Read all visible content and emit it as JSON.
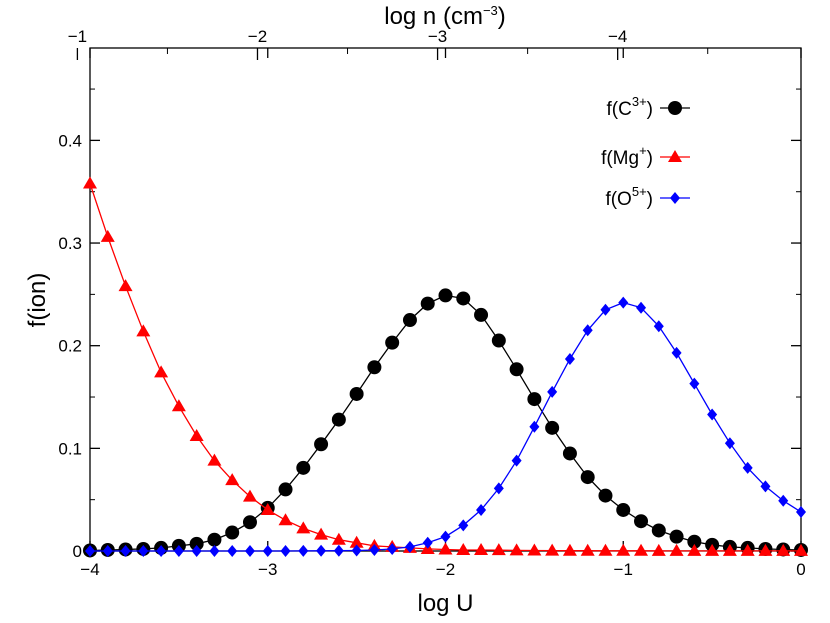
{
  "chart_data": {
    "type": "line",
    "xlabel": "log U",
    "ylabel": "f(ion)",
    "top_xlabel": {
      "base": "log n (cm",
      "exp": "−3",
      "close": ")"
    },
    "xlim": [
      -4,
      0
    ],
    "ylim": [
      0,
      0.49
    ],
    "x_ticks": [
      -4,
      -3,
      -2,
      -1,
      0
    ],
    "x_tick_labels": [
      "−4",
      "−3",
      "−2",
      "−1",
      "0"
    ],
    "y_ticks": [
      0,
      0.1,
      0.2,
      0.3,
      0.4
    ],
    "y_tick_labels": [
      "0",
      "0.1",
      "0.2",
      "0.3",
      "0.4"
    ],
    "top_ticks": [
      {
        "value": -1,
        "label": "−1"
      },
      {
        "value": -2,
        "label": "−2"
      },
      {
        "value": -3,
        "label": "−3"
      },
      {
        "value": -4,
        "label": "−4"
      }
    ],
    "top_axis_map": {
      "n_at_x_min": -1.07,
      "n_per_x": -0.987
    },
    "grid": false,
    "legend_position": "top-right",
    "x": [
      -4.0,
      -3.9,
      -3.8,
      -3.7,
      -3.6,
      -3.5,
      -3.4,
      -3.3,
      -3.2,
      -3.1,
      -3.0,
      -2.9,
      -2.8,
      -2.7,
      -2.6,
      -2.5,
      -2.4,
      -2.3,
      -2.2,
      -2.1,
      -2.0,
      -1.9,
      -1.8,
      -1.7,
      -1.6,
      -1.5,
      -1.4,
      -1.3,
      -1.2,
      -1.1,
      -1.0,
      -0.9,
      -0.8,
      -0.7,
      -0.6,
      -0.5,
      -0.4,
      -0.3,
      -0.2,
      -0.1,
      0.0
    ],
    "series": [
      {
        "name": {
          "base": "f(C",
          "sup": "3+",
          "close": ")"
        },
        "color": "#000000",
        "marker": "circle",
        "values": [
          0.0005,
          0.001,
          0.0015,
          0.002,
          0.003,
          0.005,
          0.007,
          0.011,
          0.018,
          0.028,
          0.042,
          0.06,
          0.081,
          0.104,
          0.128,
          0.153,
          0.179,
          0.203,
          0.225,
          0.241,
          0.249,
          0.246,
          0.23,
          0.205,
          0.177,
          0.148,
          0.12,
          0.095,
          0.072,
          0.054,
          0.04,
          0.029,
          0.02,
          0.014,
          0.009,
          0.006,
          0.004,
          0.003,
          0.002,
          0.0015,
          0.001
        ]
      },
      {
        "name": {
          "base": "f(Mg",
          "sup": "+",
          "close": ")"
        },
        "color": "#ff0000",
        "marker": "triangle",
        "values": [
          0.358,
          0.306,
          0.258,
          0.214,
          0.174,
          0.141,
          0.112,
          0.088,
          0.069,
          0.053,
          0.04,
          0.03,
          0.022,
          0.016,
          0.011,
          0.008,
          0.005,
          0.004,
          0.003,
          0.002,
          0.0015,
          0.001,
          0.001,
          0.0008,
          0.0006,
          0.0005,
          0.0004,
          0.0003,
          0.0003,
          0.0002,
          0.0002,
          0.0002,
          0.0001,
          0.0001,
          0.0001,
          0.0001,
          0.0001,
          0.0001,
          0.0001,
          0.0001,
          0.0001
        ]
      },
      {
        "name": {
          "base": "f(O",
          "sup": "5+",
          "close": ")"
        },
        "color": "#0000ff",
        "marker": "diamond",
        "values": [
          0.0,
          0.0,
          0.0,
          0.0,
          0.0,
          0.0,
          0.0,
          0.0,
          0.0,
          0.0,
          0.0,
          0.0,
          0.0001,
          0.0002,
          0.0003,
          0.0005,
          0.001,
          0.002,
          0.004,
          0.008,
          0.014,
          0.025,
          0.04,
          0.061,
          0.088,
          0.121,
          0.155,
          0.187,
          0.215,
          0.235,
          0.242,
          0.237,
          0.219,
          0.193,
          0.163,
          0.133,
          0.105,
          0.081,
          0.063,
          0.049,
          0.038
        ]
      }
    ]
  }
}
